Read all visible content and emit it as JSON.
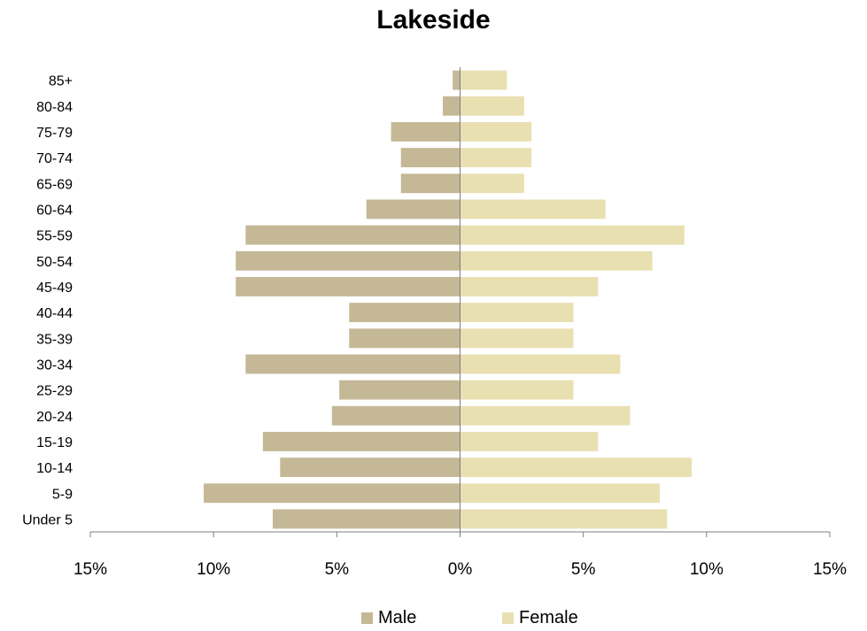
{
  "chart_data": {
    "type": "bar",
    "title": "Lakeside",
    "categories": [
      "Under 5",
      "5-9",
      "10-14",
      "15-19",
      "20-24",
      "25-29",
      "30-34",
      "35-39",
      "40-44",
      "45-49",
      "50-54",
      "55-59",
      "60-64",
      "65-69",
      "70-74",
      "75-79",
      "80-84",
      "85+"
    ],
    "series": [
      {
        "name": "Male",
        "values": [
          -7.6,
          -10.4,
          -7.3,
          -8.0,
          -5.2,
          -4.9,
          -8.7,
          -4.5,
          -4.5,
          -9.1,
          -9.1,
          -8.7,
          -3.8,
          -2.4,
          -2.4,
          -2.8,
          -0.7,
          -0.3
        ],
        "color": "#c4b897"
      },
      {
        "name": "Female",
        "values": [
          8.4,
          8.1,
          9.4,
          5.6,
          6.9,
          4.6,
          6.5,
          4.6,
          4.6,
          5.6,
          7.8,
          9.1,
          5.9,
          2.6,
          2.9,
          2.9,
          2.6,
          1.9
        ],
        "color": "#e9e0b2"
      }
    ],
    "xlim": [
      -15,
      15
    ],
    "xticks": [
      -15,
      -10,
      -5,
      0,
      5,
      10,
      15
    ],
    "xtick_labels": [
      "15%",
      "10%",
      "5%",
      "0%",
      "5%",
      "10%",
      "15%"
    ],
    "legend_position": "bottom",
    "grid": false
  },
  "legend": {
    "male": "Male",
    "female": "Female"
  }
}
